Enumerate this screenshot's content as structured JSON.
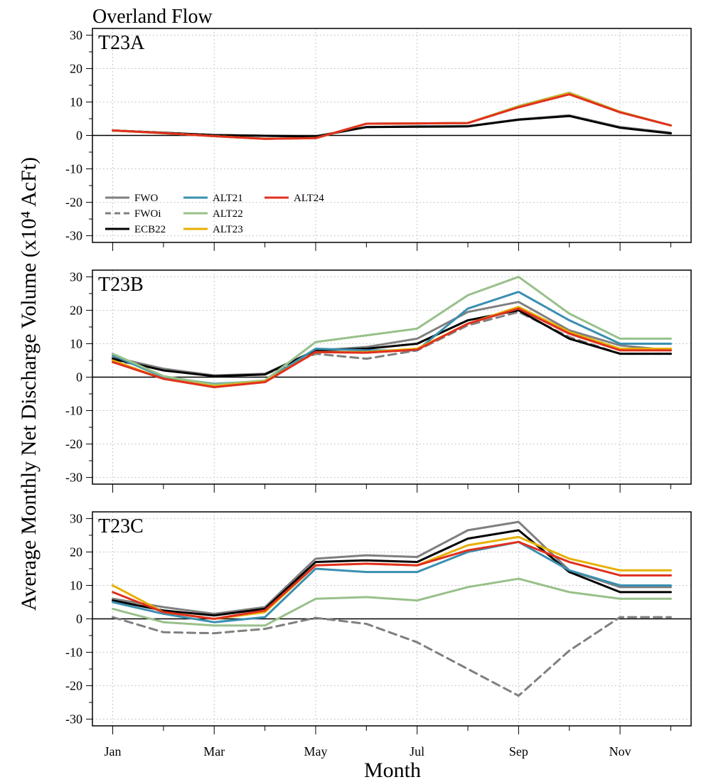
{
  "figure": {
    "title": "Overland Flow",
    "ylabel": "Average Monthly Net Discharge Volume (x10⁴ AcFt)",
    "xlabel": "Month"
  },
  "chart_data": {
    "type": "line",
    "x": [
      1,
      2,
      3,
      4,
      5,
      6,
      7,
      8,
      9,
      10,
      11,
      12
    ],
    "x_tick_values": [
      1,
      3,
      5,
      7,
      9,
      11
    ],
    "x_tick_labels": [
      "Jan",
      "Mar",
      "May",
      "Jul",
      "Sep",
      "Nov"
    ],
    "ylim": [
      -32,
      32
    ],
    "y_ticks": [
      -30,
      -20,
      -10,
      0,
      10,
      20,
      30
    ],
    "grid": true,
    "legend_position": "lower-left of first panel",
    "series_styles": [
      {
        "name": "FWO",
        "color": "#7f7f7f",
        "dash": false
      },
      {
        "name": "FWOi",
        "color": "#7f7f7f",
        "dash": true
      },
      {
        "name": "ECB22",
        "color": "#000000",
        "dash": false
      },
      {
        "name": "ALT21",
        "color": "#3a8fb0",
        "dash": false
      },
      {
        "name": "ALT22",
        "color": "#98c08a",
        "dash": false
      },
      {
        "name": "ALT23",
        "color": "#e6b000",
        "dash": false
      },
      {
        "name": "ALT24",
        "color": "#e0301e",
        "dash": false
      }
    ],
    "panels": [
      {
        "label": "T23A",
        "series": [
          {
            "name": "FWO",
            "values": [
              1.5,
              0.8,
              0.1,
              -0.1,
              -0.3,
              2.5,
              2.7,
              2.8,
              4.8,
              6.0,
              2.5,
              0.8
            ]
          },
          {
            "name": "FWOi",
            "values": [
              1.5,
              0.8,
              0.1,
              -0.1,
              -0.3,
              2.5,
              2.7,
              2.8,
              4.8,
              6.0,
              2.5,
              0.8
            ]
          },
          {
            "name": "ECB22",
            "values": [
              1.5,
              0.8,
              0.1,
              -0.1,
              -0.3,
              2.5,
              2.6,
              2.7,
              4.7,
              5.8,
              2.3,
              0.6
            ]
          },
          {
            "name": "ALT21",
            "values": [
              1.5,
              0.7,
              -0.2,
              -1.0,
              -0.8,
              3.5,
              3.6,
              3.7,
              8.5,
              12.5,
              7.0,
              3.0
            ]
          },
          {
            "name": "ALT22",
            "values": [
              1.5,
              0.7,
              -0.2,
              -1.0,
              -0.8,
              3.5,
              3.6,
              3.7,
              8.8,
              12.8,
              7.1,
              3.0
            ]
          },
          {
            "name": "ALT23",
            "values": [
              1.5,
              0.7,
              -0.2,
              -1.0,
              -0.8,
              3.5,
              3.6,
              3.7,
              8.6,
              12.6,
              7.0,
              3.0
            ]
          },
          {
            "name": "ALT24",
            "values": [
              1.5,
              0.7,
              -0.2,
              -1.0,
              -0.8,
              3.5,
              3.6,
              3.7,
              8.4,
              12.3,
              6.9,
              3.0
            ]
          }
        ]
      },
      {
        "label": "T23B",
        "series": [
          {
            "name": "FWO",
            "values": [
              6.0,
              2.5,
              0.5,
              1.0,
              8.0,
              9.0,
              11.5,
              19.5,
              22.5,
              14.0,
              9.5,
              8.0
            ]
          },
          {
            "name": "FWOi",
            "values": [
              5.0,
              2.5,
              0.3,
              0.8,
              7.0,
              5.5,
              8.0,
              15.5,
              19.5,
              12.0,
              7.0,
              7.0
            ]
          },
          {
            "name": "ECB22",
            "values": [
              5.5,
              2.0,
              0.3,
              0.8,
              8.0,
              8.5,
              10.0,
              17.0,
              20.0,
              11.5,
              7.0,
              7.0
            ]
          },
          {
            "name": "ALT21",
            "values": [
              6.5,
              0.0,
              -2.0,
              -1.2,
              8.5,
              8.0,
              8.0,
              20.5,
              25.5,
              17.0,
              10.0,
              10.0
            ]
          },
          {
            "name": "ALT22",
            "values": [
              7.0,
              0.3,
              -2.2,
              -1.0,
              10.5,
              12.5,
              14.5,
              24.5,
              30.0,
              19.0,
              11.5,
              11.5
            ]
          },
          {
            "name": "ALT23",
            "values": [
              5.0,
              -0.5,
              -2.7,
              -1.3,
              7.5,
              7.5,
              8.5,
              16.0,
              21.0,
              13.5,
              8.5,
              8.5
            ]
          },
          {
            "name": "ALT24",
            "values": [
              4.5,
              -0.5,
              -3.0,
              -1.5,
              7.5,
              7.3,
              8.2,
              16.0,
              20.5,
              13.0,
              8.0,
              8.0
            ]
          }
        ]
      },
      {
        "label": "T23C",
        "series": [
          {
            "name": "FWO",
            "values": [
              6.0,
              3.5,
              1.5,
              3.5,
              18.0,
              19.0,
              18.5,
              26.5,
              29.0,
              14.5,
              9.5,
              9.5
            ]
          },
          {
            "name": "FWOi",
            "values": [
              0.5,
              -4.0,
              -4.3,
              -3.0,
              0.3,
              -1.5,
              -7.0,
              -15.0,
              -23.0,
              -9.5,
              0.5,
              0.5
            ]
          },
          {
            "name": "ECB22",
            "values": [
              5.5,
              2.5,
              1.0,
              3.0,
              17.0,
              17.5,
              17.0,
              24.0,
              26.5,
              14.0,
              8.0,
              8.0
            ]
          },
          {
            "name": "ALT21",
            "values": [
              5.0,
              1.5,
              -1.0,
              0.5,
              15.0,
              14.0,
              14.0,
              20.0,
              23.0,
              14.5,
              10.0,
              10.0
            ]
          },
          {
            "name": "ALT22",
            "values": [
              3.0,
              -1.0,
              -2.0,
              -2.0,
              6.0,
              6.5,
              5.5,
              9.5,
              12.0,
              8.0,
              6.0,
              6.0
            ]
          },
          {
            "name": "ALT23",
            "values": [
              10.0,
              2.0,
              0.0,
              2.0,
              16.0,
              16.5,
              16.0,
              22.0,
              24.5,
              18.0,
              14.5,
              14.5
            ]
          },
          {
            "name": "ALT24",
            "values": [
              8.0,
              2.0,
              0.0,
              2.5,
              16.0,
              16.5,
              16.0,
              20.5,
              23.0,
              17.0,
              13.0,
              13.0
            ]
          }
        ]
      }
    ]
  }
}
